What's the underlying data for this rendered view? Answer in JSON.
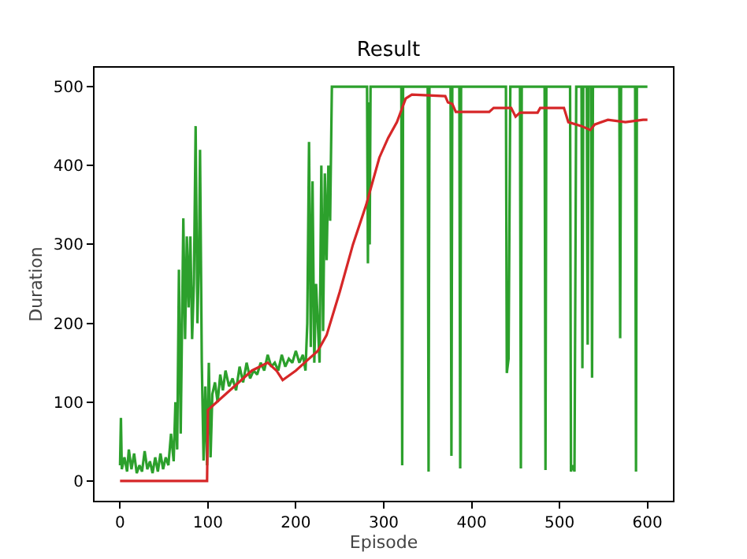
{
  "chart_data": {
    "type": "line",
    "title": "Result",
    "xlabel": "Episode",
    "ylabel": "Duration",
    "xlim": [
      -29,
      629
    ],
    "ylim": [
      -25,
      524
    ],
    "xticks": [
      0,
      100,
      200,
      300,
      400,
      500,
      600
    ],
    "yticks": [
      0,
      100,
      200,
      300,
      400,
      500
    ],
    "grid": false,
    "marker": "none",
    "line_style": "solid",
    "series": [
      {
        "color": "#2ca02c",
        "x": [
          0,
          1,
          2,
          5,
          8,
          10,
          13,
          16,
          19,
          22,
          25,
          28,
          31,
          34,
          37,
          40,
          43,
          46,
          49,
          52,
          55,
          58,
          61,
          63,
          65,
          67,
          69,
          70,
          72,
          74,
          76,
          78,
          80,
          82,
          84,
          86,
          88,
          90,
          91,
          93,
          95,
          97,
          99,
          101,
          103,
          105,
          108,
          111,
          114,
          117,
          120,
          124,
          128,
          132,
          136,
          140,
          144,
          148,
          152,
          156,
          160,
          164,
          168,
          172,
          176,
          180,
          184,
          188,
          192,
          196,
          200,
          204,
          208,
          211,
          213,
          215,
          217,
          219,
          221,
          223,
          225,
          227,
          229,
          231,
          233,
          235,
          237,
          239,
          241,
          281,
          282,
          283,
          284,
          285,
          320,
          321,
          322,
          350,
          351,
          352,
          376,
          377,
          378,
          386,
          387,
          388,
          439,
          440,
          442,
          444,
          455,
          456,
          457,
          483,
          484,
          485,
          512,
          513,
          515,
          517,
          519,
          525,
          526,
          527,
          531,
          532,
          533,
          536,
          537,
          538,
          568,
          569,
          570,
          586,
          587,
          588,
          600
        ],
        "values": [
          20,
          80,
          15,
          30,
          12,
          40,
          15,
          35,
          10,
          20,
          12,
          38,
          15,
          25,
          10,
          30,
          12,
          35,
          15,
          30,
          20,
          60,
          25,
          100,
          40,
          268,
          60,
          150,
          333,
          180,
          310,
          220,
          310,
          180,
          250,
          450,
          200,
          300,
          420,
          150,
          26,
          120,
          20,
          150,
          30,
          110,
          125,
          100,
          135,
          115,
          140,
          120,
          130,
          115,
          145,
          125,
          150,
          130,
          140,
          135,
          150,
          140,
          160,
          145,
          150,
          140,
          160,
          145,
          155,
          150,
          165,
          150,
          160,
          140,
          200,
          430,
          170,
          380,
          150,
          250,
          200,
          150,
          400,
          190,
          390,
          280,
          400,
          330,
          500,
          500,
          276,
          480,
          300,
          500,
          500,
          20,
          500,
          500,
          12,
          500,
          500,
          32,
          500,
          500,
          16,
          500,
          500,
          137,
          155,
          500,
          500,
          16,
          500,
          500,
          14,
          500,
          500,
          12,
          20,
          12,
          500,
          500,
          143,
          500,
          500,
          173,
          500,
          500,
          131,
          500,
          500,
          181,
          500,
          500,
          12,
          500,
          500
        ]
      },
      {
        "color": "#d62728",
        "x": [
          0,
          99,
          100,
          110,
          130,
          150,
          168,
          178,
          185,
          200,
          215,
          225,
          235,
          250,
          265,
          280,
          295,
          305,
          315,
          325,
          332,
          370,
          373,
          378,
          382,
          420,
          425,
          445,
          450,
          455,
          475,
          478,
          505,
          510,
          525,
          535,
          540,
          555,
          575,
          595,
          600
        ],
        "values": [
          0,
          0,
          90,
          100,
          120,
          140,
          150,
          140,
          128,
          140,
          155,
          165,
          185,
          240,
          300,
          350,
          410,
          435,
          455,
          485,
          490,
          488,
          480,
          478,
          468,
          468,
          473,
          473,
          462,
          467,
          467,
          473,
          473,
          455,
          450,
          445,
          452,
          458,
          455,
          458,
          458
        ]
      }
    ]
  }
}
